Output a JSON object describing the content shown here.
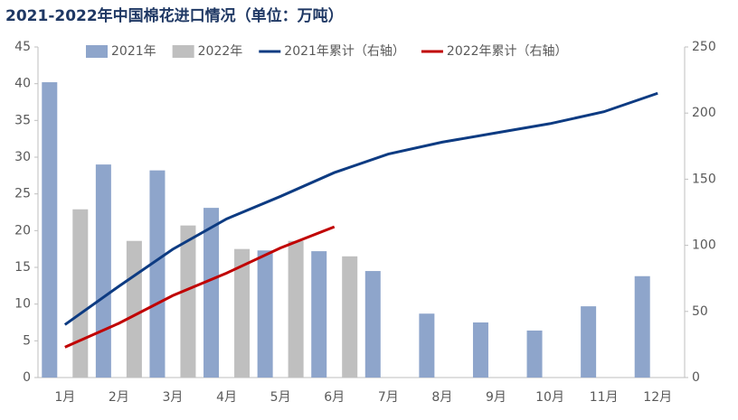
{
  "chart_data": {
    "type": "bar",
    "title": "2021-2022年中国棉花进口情况（单位：万吨）",
    "categories": [
      "1月",
      "2月",
      "3月",
      "4月",
      "5月",
      "6月",
      "7月",
      "8月",
      "9月",
      "10月",
      "11月",
      "12月"
    ],
    "series": [
      {
        "name": "2021年",
        "type": "bar",
        "color": "#8ea5cb",
        "values": [
          40.2,
          29.0,
          28.2,
          23.1,
          17.3,
          17.2,
          14.5,
          8.7,
          7.5,
          6.4,
          9.7,
          13.8
        ]
      },
      {
        "name": "2022年",
        "type": "bar",
        "color": "#bfbfbf",
        "values": [
          22.9,
          18.6,
          20.7,
          17.5,
          18.6,
          16.5,
          null,
          null,
          null,
          null,
          null,
          null
        ]
      },
      {
        "name": "2021年累计（右轴）",
        "type": "line",
        "axis": "y2",
        "color": "#0d3b82",
        "values": [
          40,
          69,
          97,
          120,
          137,
          155,
          169,
          178,
          185,
          192,
          201,
          215
        ]
      },
      {
        "name": "2022年累计（右轴）",
        "type": "line",
        "axis": "y2",
        "color": "#c00000",
        "values": [
          23,
          41,
          62,
          79,
          98,
          114,
          null,
          null,
          null,
          null,
          null,
          null
        ]
      }
    ],
    "ylim": [
      0,
      45
    ],
    "yticks": [
      0,
      5,
      10,
      15,
      20,
      25,
      30,
      35,
      40,
      45
    ],
    "y2lim": [
      0,
      250
    ],
    "y2ticks": [
      0,
      50,
      100,
      150,
      200,
      250
    ],
    "grid": false,
    "legend": "top"
  }
}
